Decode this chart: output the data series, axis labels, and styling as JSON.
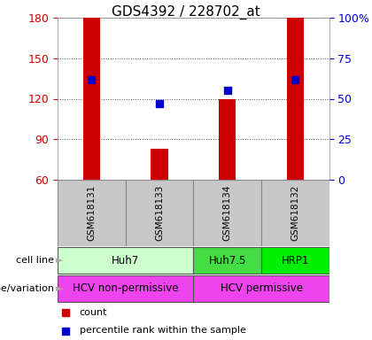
{
  "title": "GDS4392 / 228702_at",
  "samples": [
    "GSM618131",
    "GSM618133",
    "GSM618134",
    "GSM618132"
  ],
  "bar_values": [
    180,
    83,
    120,
    180
  ],
  "bar_bottom": 60,
  "percentile_values": [
    62,
    47,
    55,
    62
  ],
  "bar_color": "#cc0000",
  "percentile_color": "#0000cc",
  "ylim_left": [
    60,
    180
  ],
  "ylim_right": [
    0,
    100
  ],
  "yticks_left": [
    60,
    90,
    120,
    150,
    180
  ],
  "yticks_right": [
    0,
    25,
    50,
    75,
    100
  ],
  "ytick_labels_right": [
    "0",
    "25",
    "50",
    "75",
    "100%"
  ],
  "cell_line_spans": [
    [
      0,
      1,
      "Huh7",
      "#ccffcc"
    ],
    [
      2,
      2,
      "Huh7.5",
      "#44dd44"
    ],
    [
      3,
      3,
      "HRP1",
      "#00ee00"
    ]
  ],
  "genotype_spans": [
    [
      0,
      1,
      "HCV non-permissive",
      "#ee44ee"
    ],
    [
      2,
      3,
      "HCV permissive",
      "#ee44ee"
    ]
  ],
  "sample_bg": "#c8c8c8",
  "bg_color": "#ffffff",
  "grid_color": "#555555",
  "legend_count_color": "#cc0000",
  "legend_pct_color": "#0000cc",
  "bar_width": 0.25
}
